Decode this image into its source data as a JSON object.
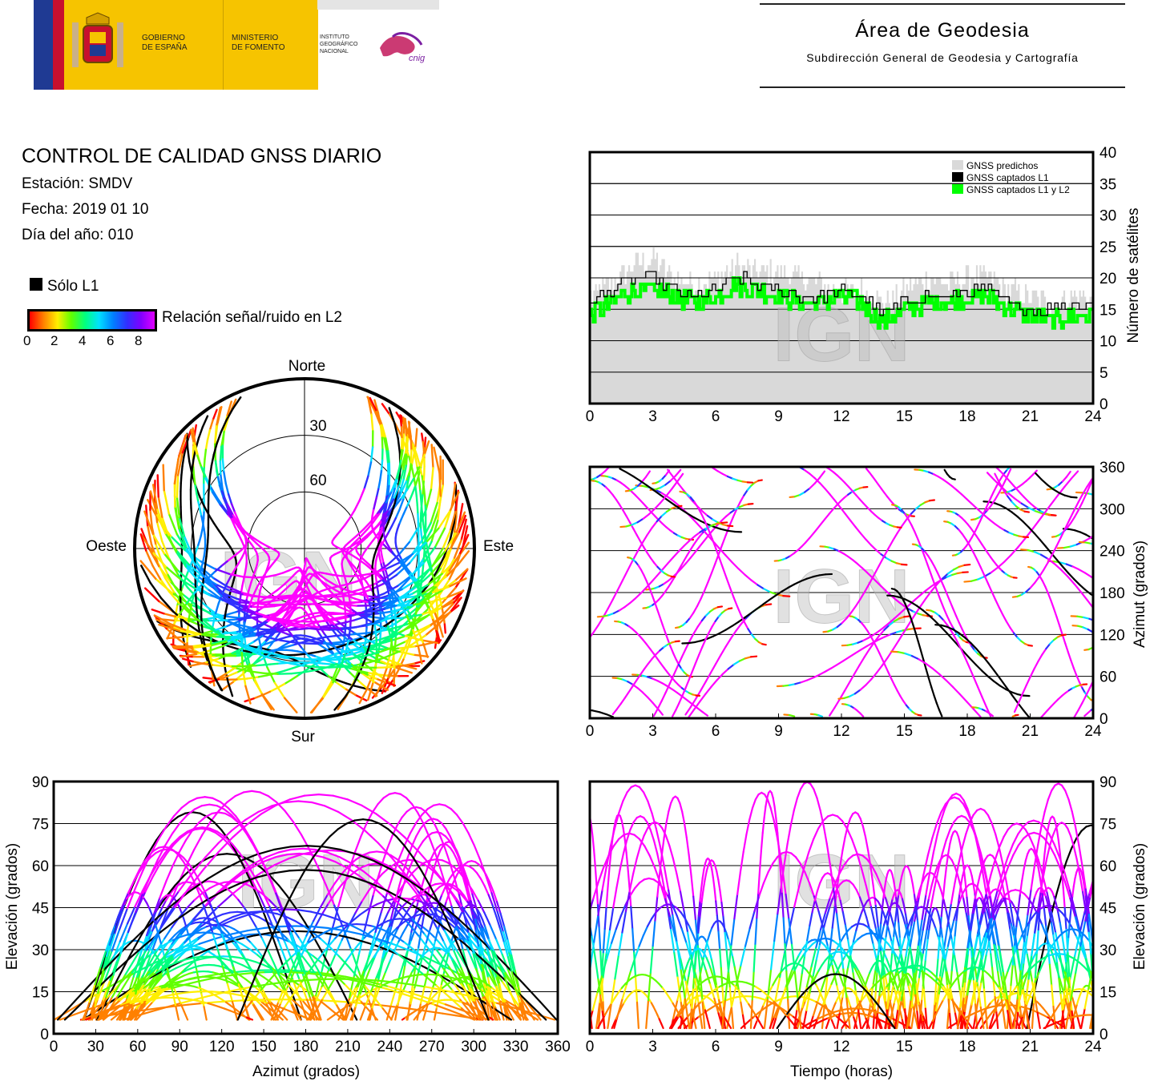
{
  "header": {
    "gov1": "GOBIERNO\nDE ESPAÑA",
    "gov2": "MINISTERIO\nDE FOMENTO",
    "inst": "INSTITUTO\nGEOGRÁFICO\nNACIONAL",
    "cnig": "cnig",
    "area_title": "Área de Geodesia",
    "area_subtitle": "Subdirección General de Geodesia y Cartografía"
  },
  "info": {
    "title": "CONTROL DE CALIDAD GNSS DIARIO",
    "station": "Estación: SMDV",
    "date": "Fecha: 2019 01 10",
    "doy": "Día del año: 010"
  },
  "legend": {
    "l1_only": "Sólo L1",
    "snr_label": "Relación señal/ruido en L2",
    "snr_ticks": [
      "0",
      "2",
      "4",
      "6",
      "8"
    ],
    "snr_colors": [
      "#ff0000",
      "#ff8000",
      "#ffee00",
      "#60ff00",
      "#00ff80",
      "#00e0ff",
      "#0080ff",
      "#3030ff",
      "#8000ff",
      "#e000ff"
    ]
  },
  "watermark": "IGN",
  "colors": {
    "magenta": "#ff00ff",
    "l1_black": "#000000",
    "predicted_gray": "#d9d9d9",
    "l1l2_green": "#00ff00"
  },
  "chart_data": [
    {
      "type": "area",
      "id": "satellites",
      "ylabel": "Número de satélites",
      "xlim": [
        0,
        24
      ],
      "ylim": [
        0,
        40
      ],
      "xticks": [
        0,
        3,
        6,
        9,
        12,
        15,
        18,
        21,
        24
      ],
      "yticks": [
        0,
        5,
        10,
        15,
        20,
        25,
        30,
        35,
        40
      ],
      "legend": [
        "GNSS predichos",
        "GNSS captados L1",
        "GNSS captados L1 y L2"
      ],
      "legend_position": "top-right",
      "x": [
        0,
        1,
        2,
        3,
        4,
        5,
        6,
        7,
        8,
        9,
        10,
        11,
        12,
        13,
        14,
        15,
        16,
        17,
        18,
        19,
        20,
        21,
        22,
        23,
        24
      ],
      "series": [
        {
          "name": "GNSS predichos",
          "values": [
            17,
            19,
            22,
            23,
            20,
            19,
            20,
            22,
            21,
            21,
            20,
            19,
            18,
            18,
            16,
            18,
            20,
            19,
            20,
            20,
            18,
            17,
            16,
            17,
            17
          ]
        },
        {
          "name": "GNSS captados L1",
          "values": [
            16,
            18,
            20,
            20,
            18,
            17,
            18,
            20,
            19,
            18,
            17,
            17,
            18,
            17,
            14,
            16,
            17,
            17,
            18,
            18,
            16,
            15,
            15,
            16,
            16
          ]
        },
        {
          "name": "GNSS captados L1 y L2",
          "values": [
            14,
            16,
            18,
            18,
            17,
            16,
            17,
            19,
            18,
            17,
            16,
            16,
            17,
            16,
            13,
            15,
            16,
            16,
            17,
            17,
            15,
            14,
            13,
            14,
            14
          ]
        }
      ]
    },
    {
      "type": "polar",
      "id": "skyplot",
      "directions": {
        "north": "Norte",
        "south": "Sur",
        "east": "Este",
        "west": "Oeste"
      },
      "elevation_rings": [
        "30",
        "60"
      ]
    },
    {
      "type": "scatter",
      "id": "azimuth_vs_time",
      "ylabel": "Azimut (grados)",
      "xlim": [
        0,
        24
      ],
      "ylim": [
        0,
        360
      ],
      "xticks": [
        0,
        3,
        6,
        9,
        12,
        15,
        18,
        21,
        24
      ],
      "yticks": [
        0,
        60,
        120,
        180,
        240,
        300,
        360
      ]
    },
    {
      "type": "scatter",
      "id": "elevation_vs_azimuth",
      "xlabel": "Azimut (grados)",
      "ylabel": "Elevación (grados)",
      "xlim": [
        0,
        360
      ],
      "ylim": [
        0,
        90
      ],
      "xticks": [
        0,
        30,
        60,
        90,
        120,
        150,
        180,
        210,
        240,
        270,
        300,
        330,
        360
      ],
      "yticks": [
        0,
        15,
        30,
        45,
        60,
        75,
        90
      ]
    },
    {
      "type": "scatter",
      "id": "elevation_vs_time",
      "xlabel": "Tiempo (horas)",
      "ylabel": "Elevación (grados)",
      "xlim": [
        0,
        24
      ],
      "ylim": [
        0,
        90
      ],
      "xticks": [
        0,
        3,
        6,
        9,
        12,
        15,
        18,
        21,
        24
      ],
      "yticks": [
        0,
        15,
        30,
        45,
        60,
        75,
        90
      ]
    }
  ]
}
